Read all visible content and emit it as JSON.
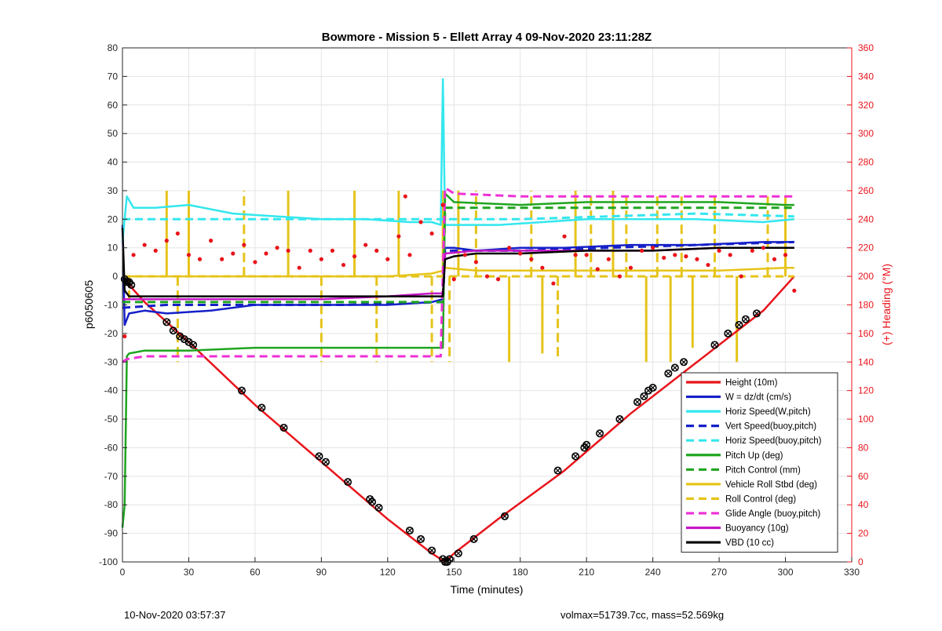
{
  "chart_data": {
    "type": "line",
    "title": "Bowmore - Mission 5 - Ellett Array 4 09-Nov-2020 23:11:28Z",
    "xlabel": "Time (minutes)",
    "ylabel": "p6050605",
    "y2label": "(+) Heading (°M)",
    "xlim": [
      0,
      330
    ],
    "ylim": [
      -100,
      80
    ],
    "y2lim": [
      0,
      360
    ],
    "xticks": [
      0,
      30,
      60,
      90,
      120,
      150,
      180,
      210,
      240,
      270,
      300,
      330
    ],
    "yticks": [
      -100,
      -90,
      -80,
      -70,
      -60,
      -50,
      -40,
      -30,
      -20,
      -10,
      0,
      10,
      20,
      30,
      40,
      50,
      60,
      70,
      80
    ],
    "y2ticks": [
      0,
      20,
      40,
      60,
      80,
      100,
      120,
      140,
      160,
      180,
      200,
      220,
      240,
      260,
      280,
      300,
      320,
      340,
      360
    ],
    "grid": true,
    "legend_position": "bottom-right",
    "series": [
      {
        "name": "Height (10m)",
        "color": "#e8141b",
        "style": "solid",
        "x": [
          0,
          3,
          10,
          30,
          60,
          90,
          120,
          140,
          146,
          150,
          170,
          200,
          230,
          260,
          290,
          304
        ],
        "y": [
          0,
          -3,
          -9,
          -23,
          -45,
          -65,
          -85,
          -97,
          -100,
          -97,
          -85,
          -68,
          -48,
          -30,
          -12,
          0
        ]
      },
      {
        "name": "W = dz/dt (cm/s)",
        "color": "#1520c8",
        "style": "solid",
        "x": [
          0,
          1,
          3,
          10,
          20,
          40,
          60,
          90,
          120,
          140,
          145,
          146,
          150,
          160,
          180,
          200,
          230,
          260,
          290,
          304
        ],
        "y": [
          18,
          -17,
          -13,
          -12,
          -13,
          -12,
          -10,
          -10,
          -10,
          -9,
          -8,
          10,
          10,
          9,
          10,
          10,
          11,
          11,
          12,
          12
        ]
      },
      {
        "name": "Horiz Speed(W,pitch)",
        "color": "#33e7ee",
        "style": "solid",
        "x": [
          0,
          2,
          5,
          15,
          30,
          50,
          70,
          90,
          110,
          130,
          140,
          144,
          145,
          146,
          150,
          170,
          190,
          210,
          230,
          260,
          290,
          304
        ],
        "y": [
          12,
          28,
          24,
          24,
          25,
          22,
          21,
          20,
          20,
          19,
          19,
          18,
          69,
          18,
          18,
          18,
          19,
          20,
          20,
          20,
          19,
          20
        ]
      },
      {
        "name": "Vert Speed(buoy,pitch)",
        "color": "#1520c8",
        "style": "dashed",
        "x": [
          0,
          20,
          60,
          100,
          145,
          146,
          180,
          220,
          260,
          304
        ],
        "y": [
          -11,
          -10,
          -10,
          -10,
          -9,
          9,
          9,
          10,
          11,
          12
        ]
      },
      {
        "name": "Horiz Speed(buoy,pitch)",
        "color": "#33e7ee",
        "style": "dashed",
        "x": [
          0,
          20,
          60,
          100,
          145,
          146,
          180,
          220,
          260,
          304
        ],
        "y": [
          20,
          20,
          20,
          20,
          20,
          20,
          20,
          21,
          22,
          21
        ]
      },
      {
        "name": "Pitch Up (deg)",
        "color": "#1fa51f",
        "style": "solid",
        "x": [
          0,
          1,
          2,
          3,
          10,
          30,
          60,
          90,
          120,
          144,
          145,
          146,
          150,
          180,
          210,
          240,
          270,
          300,
          304
        ],
        "y": [
          -88,
          -80,
          -28,
          -27,
          -26,
          -26,
          -25,
          -25,
          -25,
          -25,
          -25,
          29,
          26,
          25,
          26,
          26,
          26,
          25,
          25
        ]
      },
      {
        "name": "Pitch Control (mm)",
        "color": "#1fa51f",
        "style": "dashed",
        "x": [
          0,
          30,
          60,
          90,
          120,
          145,
          146,
          180,
          210,
          240,
          270,
          304
        ],
        "y": [
          -9,
          -9,
          -9,
          -9,
          -9,
          -9,
          24,
          24,
          24,
          24,
          24,
          24
        ]
      },
      {
        "name": "Vehicle Roll Stbd (deg)",
        "color": "#e6c41a",
        "style": "solid",
        "x": [
          0,
          10,
          20,
          30,
          40,
          60,
          90,
          120,
          140,
          145,
          146,
          160,
          180,
          210,
          240,
          270,
          300,
          304
        ],
        "y": [
          0,
          0,
          0,
          0,
          0,
          0,
          0,
          0,
          1,
          2,
          3,
          2,
          2,
          2,
          2,
          2,
          3,
          3
        ]
      },
      {
        "name": "Roll Control (deg)",
        "color": "#e6c41a",
        "style": "dashed",
        "x": [
          0,
          30,
          60,
          90,
          120,
          145,
          146,
          180,
          210,
          240,
          270,
          304
        ],
        "y": [
          0,
          0,
          0,
          0,
          0,
          0,
          0,
          0,
          0,
          0,
          0,
          0
        ]
      },
      {
        "name": "Glide Angle (buoy,pitch)",
        "color": "#ee2fd6",
        "style": "dashed",
        "x": [
          0,
          2,
          10,
          30,
          60,
          90,
          120,
          144,
          146,
          150,
          180,
          210,
          240,
          270,
          300,
          304
        ],
        "y": [
          -30,
          -29,
          -28,
          -28,
          -28,
          -28,
          -28,
          -28,
          31,
          29,
          28,
          28,
          28,
          28,
          28,
          28
        ]
      },
      {
        "name": "Buoyancy (10g)",
        "color": "#c517c5",
        "style": "solid",
        "x": [
          0,
          10,
          30,
          60,
          90,
          120,
          140,
          145,
          146,
          160,
          180,
          210,
          240,
          270,
          300,
          304
        ],
        "y": [
          -8,
          -8,
          -8,
          -8,
          -8,
          -7,
          -6,
          -6,
          8,
          9,
          9,
          9,
          9,
          10,
          10,
          10
        ]
      },
      {
        "name": "VBD (10 cc)",
        "color": "#000000",
        "style": "solid",
        "x": [
          0,
          1,
          2,
          3,
          10,
          30,
          60,
          90,
          120,
          145,
          146,
          150,
          160,
          180,
          210,
          240,
          270,
          300,
          304
        ],
        "y": [
          17,
          -5,
          -6,
          -7,
          -7,
          -7,
          -7,
          -7,
          -7,
          -7,
          6,
          7,
          8,
          8,
          9,
          9,
          10,
          10,
          10
        ]
      }
    ],
    "heading_series": {
      "name": "Heading",
      "color": "#e8141b",
      "axis": "right",
      "x": [
        1,
        5,
        10,
        15,
        20,
        25,
        30,
        35,
        40,
        45,
        50,
        55,
        60,
        65,
        70,
        75,
        80,
        85,
        90,
        95,
        100,
        105,
        110,
        115,
        120,
        125,
        128,
        130,
        135,
        140,
        145,
        150,
        155,
        160,
        165,
        170,
        175,
        180,
        185,
        190,
        195,
        200,
        205,
        210,
        215,
        220,
        225,
        230,
        235,
        240,
        245,
        250,
        255,
        260,
        265,
        270,
        275,
        280,
        285,
        290,
        295,
        300,
        304
      ],
      "y": [
        158,
        215,
        222,
        218,
        225,
        230,
        215,
        212,
        225,
        212,
        216,
        222,
        210,
        216,
        220,
        218,
        206,
        218,
        212,
        218,
        208,
        214,
        222,
        218,
        212,
        228,
        256,
        215,
        238,
        230,
        250,
        198,
        215,
        210,
        200,
        198,
        220,
        216,
        212,
        206,
        195,
        228,
        215,
        215,
        205,
        212,
        200,
        206,
        218,
        220,
        213,
        215,
        214,
        212,
        208,
        218,
        215,
        200,
        218,
        220,
        212,
        215,
        190
      ]
    },
    "roll_spikes": {
      "x": [
        3,
        20,
        25,
        30,
        55,
        75,
        90,
        105,
        115,
        125,
        140,
        145,
        148,
        152,
        160,
        175,
        185,
        190,
        197,
        205,
        212,
        222,
        228,
        237,
        242,
        248,
        253,
        258,
        268,
        278,
        292,
        300
      ],
      "y": [
        -10,
        30,
        -30,
        30,
        30,
        30,
        -30,
        30,
        -30,
        30,
        -30,
        30,
        -30,
        30,
        30,
        -30,
        30,
        -27,
        -28,
        30,
        28,
        30,
        28,
        -30,
        28,
        -30,
        28,
        -25,
        28,
        -30,
        28,
        28
      ]
    },
    "markers": {
      "x": [
        1,
        2,
        3,
        4,
        20,
        23,
        26,
        28,
        30,
        32,
        54,
        63,
        73,
        89,
        92,
        102,
        112,
        113,
        116,
        130,
        135,
        140,
        145,
        146,
        147,
        148,
        152,
        159,
        173,
        197,
        205,
        209,
        210,
        216,
        225,
        233,
        236,
        238,
        240,
        247,
        250,
        254,
        268,
        274,
        279,
        282,
        287
      ],
      "y": [
        -1,
        -2,
        -2,
        -3,
        -16,
        -19,
        -21,
        -22,
        -23,
        -24,
        -40,
        -46,
        -53,
        -63,
        -65,
        -72,
        -78,
        -79,
        -81,
        -89,
        -92,
        -96,
        -99,
        -100,
        -100,
        -99,
        -97,
        -92,
        -84,
        -68,
        -63,
        -60,
        -59,
        -55,
        -50,
        -44,
        -42,
        -40,
        -39,
        -34,
        -32,
        -30,
        -24,
        -20,
        -17,
        -15,
        -13
      ]
    }
  },
  "footer": {
    "timestamp": "10-Nov-2020 03:57:37",
    "stats": "volmax=51739.7cc, mass=52.569kg"
  }
}
